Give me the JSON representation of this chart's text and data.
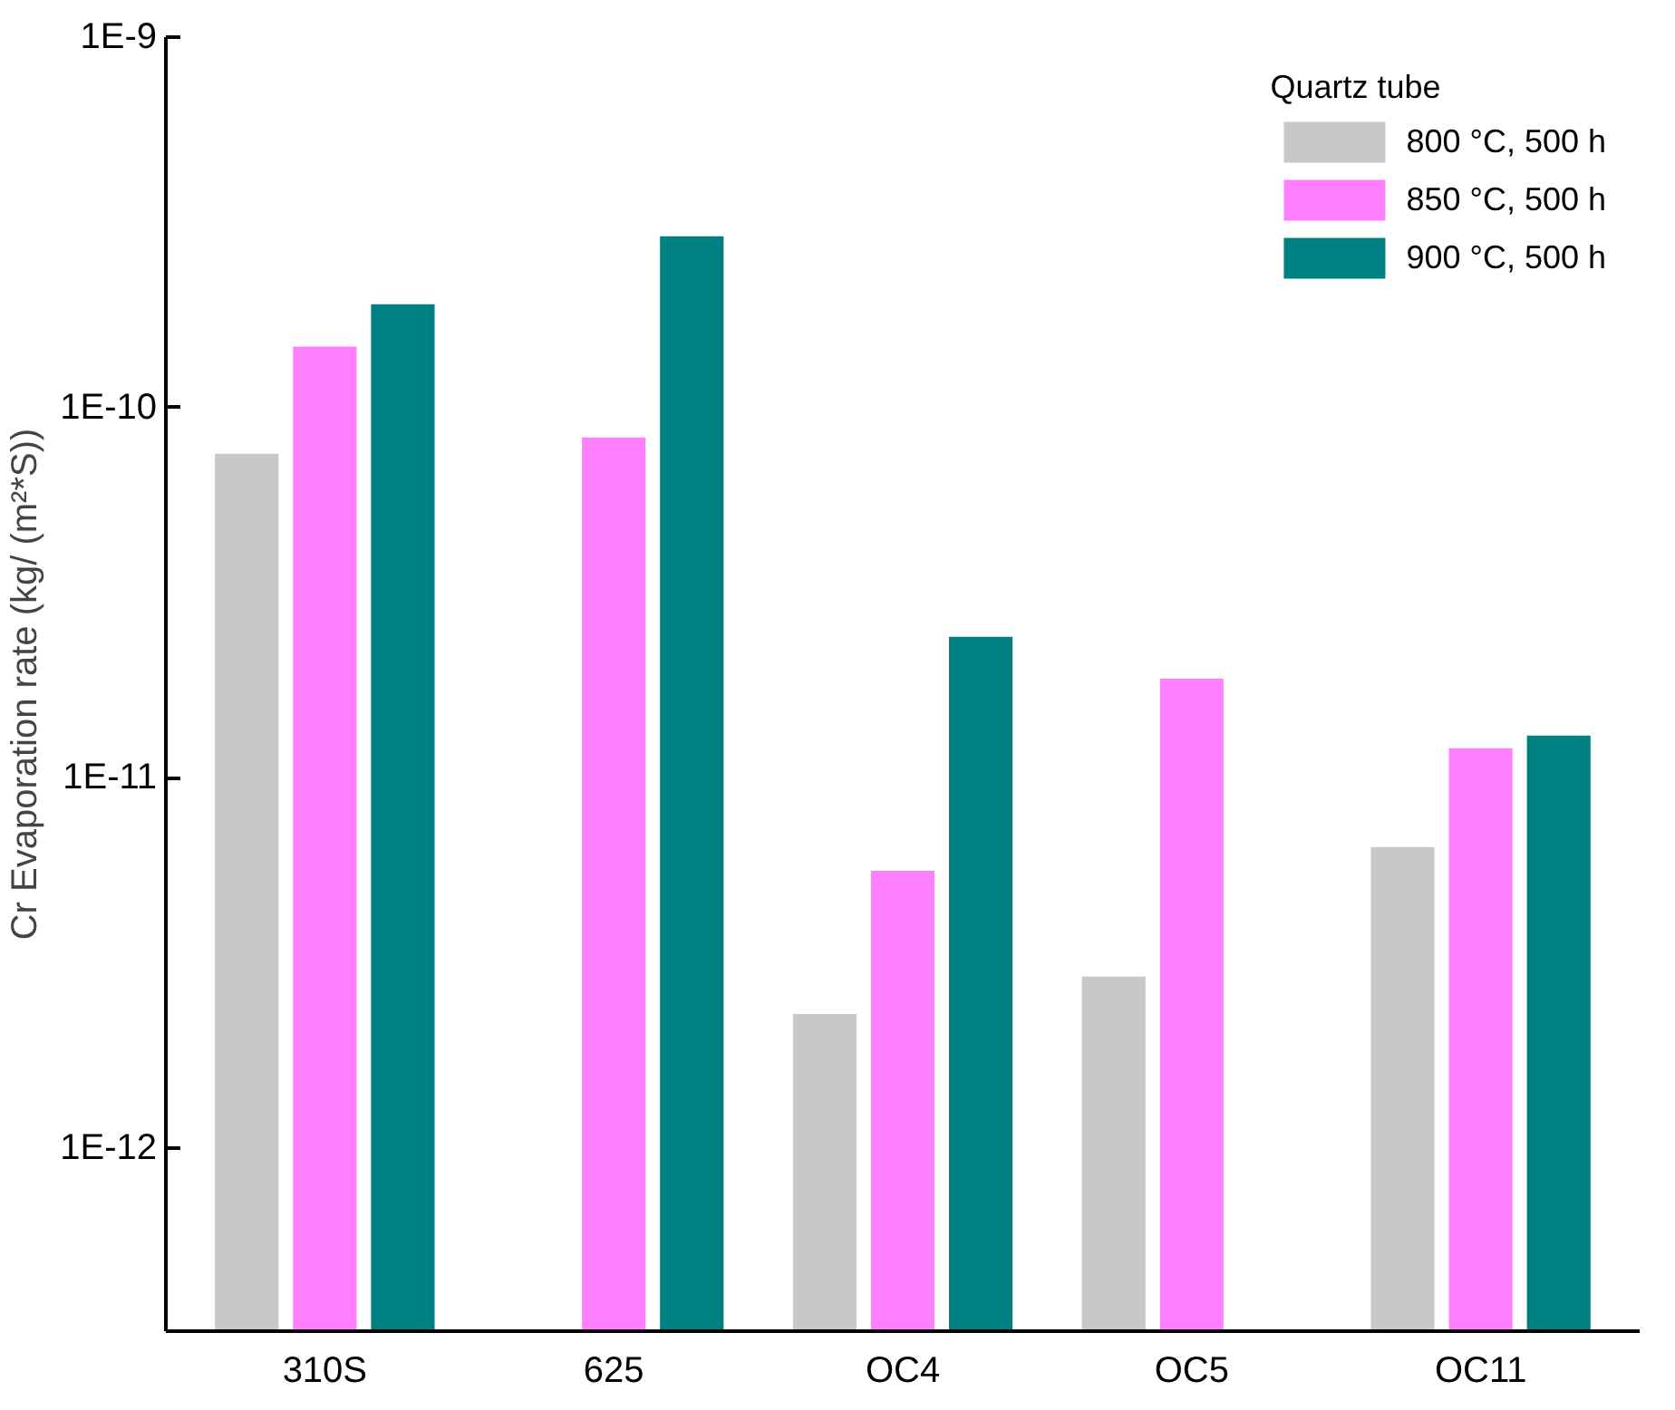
{
  "chart_data": {
    "type": "bar",
    "ylabel": "Cr Evaporation rate (kg/ (m²*S))",
    "legend_title": "Quartz tube",
    "categories": [
      "310S",
      "625",
      "OC4",
      "OC5",
      "OC11"
    ],
    "series": [
      {
        "name": "800 °C, 500 h",
        "color": "#c8c8c8",
        "values": [
          7.5e-11,
          null,
          2.3e-12,
          2.9e-12,
          6.5e-12
        ]
      },
      {
        "name": "850 °C, 500 h",
        "color": "#ff80ff",
        "values": [
          1.46e-10,
          8.3e-11,
          5.6e-12,
          1.85e-11,
          1.2e-11
        ]
      },
      {
        "name": "900 °C, 500 h",
        "color": "#008080",
        "values": [
          1.9e-10,
          2.9e-10,
          2.4e-11,
          null,
          1.3e-11
        ]
      }
    ],
    "log": "y",
    "ylim": [
      3.2e-13,
      1e-09
    ],
    "yticks": [
      {
        "value": 1e-12,
        "label": "1E-12"
      },
      {
        "value": 1e-11,
        "label": "1E-11"
      },
      {
        "value": 1e-10,
        "label": "1E-10"
      },
      {
        "value": 1e-09,
        "label": "1E-9"
      }
    ],
    "grid": false,
    "legend": "top right"
  }
}
